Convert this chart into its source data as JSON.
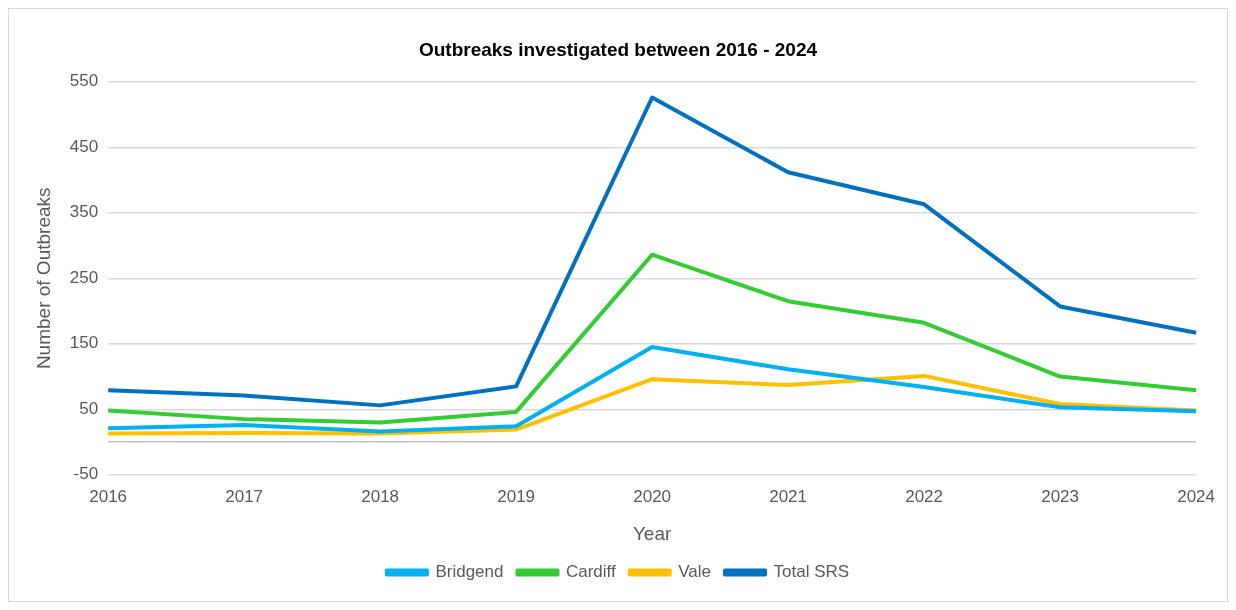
{
  "chart_data": {
    "type": "line",
    "title": "Outbreaks investigated between 2016 - 2024",
    "xlabel": "Year",
    "ylabel": "Number of Outbreaks",
    "categories": [
      "2016",
      "2017",
      "2018",
      "2019",
      "2020",
      "2021",
      "2022",
      "2023",
      "2024"
    ],
    "series": [
      {
        "name": "Bridgend",
        "color": "#00b0f0",
        "values": [
          21,
          26,
          16,
          24,
          145,
          111,
          84,
          53,
          47
        ]
      },
      {
        "name": "Cardiff",
        "color": "#33cc33",
        "values": [
          48,
          35,
          30,
          46,
          286,
          215,
          182,
          100,
          79
        ]
      },
      {
        "name": "Vale",
        "color": "#ffc000",
        "values": [
          13,
          14,
          13,
          19,
          96,
          87,
          101,
          58,
          48
        ]
      },
      {
        "name": "Total SRS",
        "color": "#0070c0",
        "values": [
          79,
          71,
          56,
          85,
          526,
          412,
          363,
          207,
          167
        ]
      }
    ],
    "ylim": [
      -50,
      550
    ],
    "yticks": [
      -50,
      {
        "value": 0,
        "label": null
      },
      50,
      150,
      250,
      350,
      450,
      550
    ],
    "grid": "y",
    "legend": "bottom",
    "marker": "none",
    "line_style": "solid"
  }
}
